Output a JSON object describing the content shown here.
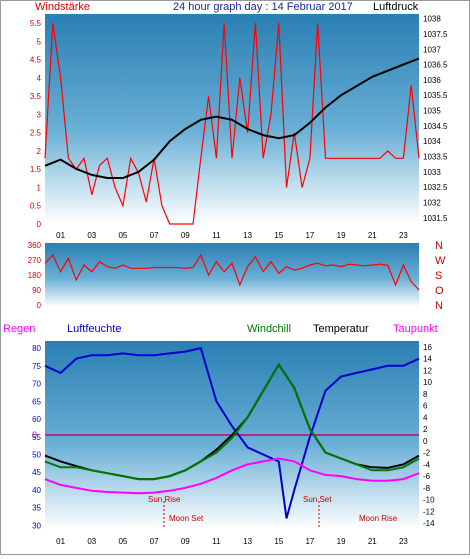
{
  "chart_data": [
    {
      "id": "wind-pressure",
      "type": "line",
      "title": "24 hour graph day : 14 Februar 2017",
      "left_label": "Windstärke",
      "right_label": "Luftdruck",
      "y_left": {
        "ticks": [
          "0",
          "0.5",
          "1",
          "1.5",
          "2",
          "2.5",
          "3",
          "3.5",
          "4",
          "4.5",
          "5",
          "5.5"
        ],
        "lim": [
          0,
          5.75
        ]
      },
      "y_right": {
        "ticks": [
          "1031.5",
          "1032",
          "1032.5",
          "1033",
          "1033.5",
          "1034",
          "1034.5",
          "1035",
          "1035.5",
          "1036",
          "1036.5",
          "1037",
          "1037.5",
          "1038"
        ],
        "lim": [
          1031.3,
          1038.15
        ]
      },
      "x_ticks": [
        "01",
        "03",
        "05",
        "07",
        "09",
        "11",
        "13",
        "15",
        "17",
        "19",
        "21",
        "23"
      ],
      "series": [
        {
          "name": "Windstärke",
          "color": "#ff0000",
          "axis": "left",
          "x": [
            0,
            0.5,
            1,
            1.5,
            2,
            2.5,
            3,
            3.5,
            4,
            4.5,
            5,
            5.5,
            6,
            6.5,
            7,
            7.5,
            8,
            8.5,
            9,
            9.5,
            10,
            10.5,
            11,
            11.5,
            12,
            12.5,
            13,
            13.5,
            14,
            14.5,
            15,
            15.5,
            16,
            16.5,
            17,
            17.5,
            18,
            18.5,
            19,
            19.5,
            20,
            20.5,
            21,
            21.5,
            22,
            22.5,
            23,
            23.5,
            24
          ],
          "y": [
            1.8,
            5.5,
            4.0,
            1.8,
            1.5,
            1.8,
            0.8,
            1.6,
            1.8,
            1.0,
            0.5,
            1.8,
            1.4,
            0.6,
            1.8,
            0.5,
            0,
            0,
            0,
            0,
            1.8,
            3.5,
            1.8,
            5.5,
            1.8,
            4.0,
            2.5,
            5.5,
            1.8,
            3.0,
            5.5,
            1.0,
            2.5,
            1.0,
            1.8,
            5.5,
            1.8,
            1.8,
            1.8,
            1.8,
            1.8,
            1.8,
            1.8,
            1.8,
            2.0,
            1.8,
            1.8,
            3.8,
            1.8
          ]
        },
        {
          "name": "Luftdruck",
          "color": "#000000",
          "axis": "right",
          "x": [
            0,
            1,
            2,
            3,
            4,
            5,
            6,
            7,
            8,
            9,
            10,
            11,
            12,
            13,
            14,
            15,
            16,
            17,
            18,
            19,
            20,
            21,
            22,
            23,
            24
          ],
          "y": [
            1033.2,
            1033.4,
            1033.1,
            1032.9,
            1032.8,
            1032.8,
            1033.0,
            1033.4,
            1034.0,
            1034.4,
            1034.7,
            1034.8,
            1034.7,
            1034.4,
            1034.2,
            1034.1,
            1034.2,
            1034.6,
            1035.1,
            1035.5,
            1035.8,
            1036.1,
            1036.3,
            1036.5,
            1036.7
          ]
        }
      ]
    },
    {
      "id": "wind-direction",
      "type": "line",
      "y_left": {
        "ticks": [
          "0",
          "90",
          "180",
          "270",
          "360"
        ],
        "lim": [
          0,
          360
        ]
      },
      "y_right_labels": [
        "N",
        "W",
        "S",
        "O",
        "N"
      ],
      "series": [
        {
          "name": "Windrichtung",
          "color": "#ff0000",
          "x": [
            0,
            0.5,
            1,
            1.5,
            2,
            2.5,
            3,
            3.5,
            4,
            4.5,
            5,
            5.5,
            6,
            6.5,
            7,
            7.5,
            8,
            8.5,
            9,
            9.5,
            10,
            10.5,
            11,
            11.5,
            12,
            12.5,
            13,
            13.5,
            14,
            14.5,
            15,
            15.5,
            16,
            16.5,
            17,
            17.5,
            18,
            18.5,
            19,
            19.5,
            20,
            20.5,
            21,
            21.5,
            22,
            22.5,
            23,
            23.5,
            24
          ],
          "y": [
            250,
            300,
            200,
            280,
            150,
            240,
            200,
            260,
            230,
            220,
            240,
            220,
            220,
            220,
            225,
            225,
            225,
            225,
            220,
            225,
            300,
            180,
            260,
            200,
            250,
            120,
            230,
            290,
            200,
            260,
            190,
            230,
            210,
            220,
            240,
            250,
            235,
            240,
            230,
            245,
            240,
            235,
            240,
            245,
            238,
            120,
            240,
            140,
            90
          ]
        }
      ]
    },
    {
      "id": "humidity-temperature",
      "type": "line",
      "legend": [
        "Regen",
        "Luftfeuchte",
        "Windchill",
        "Temperatur",
        "Taupunkt"
      ],
      "legend_colors": [
        "#ff00ff",
        "#0000cc",
        "#007700",
        "#000000",
        "#ff00ff"
      ],
      "y_left": {
        "ticks": [
          "30",
          "35",
          "40",
          "45",
          "50",
          "55",
          "60",
          "65",
          "70",
          "75",
          "80"
        ],
        "lim": [
          29,
          82
        ]
      },
      "y_right": {
        "ticks": [
          "-14",
          "-12",
          "-10",
          "-8",
          "-6",
          "-4",
          "-2",
          "0",
          "2",
          "4",
          "6",
          "8",
          "10",
          "12",
          "14",
          "16"
        ],
        "lim": [
          -15,
          17
        ]
      },
      "zero_label": "0",
      "annotations": [
        "Sun Rise",
        "Sun Set",
        "Moon Set",
        "Moon Rise"
      ],
      "series": [
        {
          "name": "Luftfeuchte",
          "color": "#0000cc",
          "axis": "left",
          "x": [
            0,
            1,
            2,
            3,
            4,
            5,
            6,
            7,
            8,
            9,
            10,
            11,
            12,
            13,
            14,
            15,
            15.5,
            16,
            17,
            18,
            19,
            20,
            21,
            22,
            23,
            24
          ],
          "y": [
            75,
            73,
            77,
            78,
            78,
            78.5,
            78,
            78,
            78.5,
            79,
            80,
            65,
            58,
            52,
            50,
            48,
            32,
            40,
            55,
            68,
            72,
            73,
            74,
            75,
            75,
            77
          ]
        },
        {
          "name": "Temperatur",
          "color": "#000000",
          "axis": "right",
          "x": [
            0,
            1,
            2,
            3,
            4,
            5,
            6,
            7,
            8,
            9,
            10,
            11,
            12,
            13,
            14,
            15,
            16,
            17,
            18,
            19,
            20,
            21,
            22,
            23,
            24
          ],
          "y": [
            -2.5,
            -3.5,
            -4.3,
            -5,
            -5.5,
            -6,
            -6.5,
            -6.5,
            -6,
            -5,
            -3.5,
            -1.5,
            1,
            4,
            8.5,
            13,
            9,
            2,
            -2,
            -3,
            -4,
            -4.5,
            -4.6,
            -4,
            -2.5
          ]
        },
        {
          "name": "Windchill",
          "color": "#007700",
          "axis": "right",
          "x": [
            0,
            1,
            2,
            3,
            4,
            5,
            6,
            7,
            8,
            9,
            10,
            11,
            12,
            13,
            14,
            15,
            16,
            17,
            18,
            19,
            20,
            21,
            22,
            23,
            24
          ],
          "y": [
            -3.5,
            -4.5,
            -4.5,
            -5,
            -5.5,
            -6,
            -6.5,
            -6.5,
            -6,
            -5,
            -3.5,
            -2,
            0.5,
            4,
            8.5,
            13,
            9,
            2,
            -2,
            -3,
            -4,
            -5,
            -5,
            -4.5,
            -3
          ]
        },
        {
          "name": "Taupunkt",
          "color": "#ff00ff",
          "axis": "right",
          "x": [
            0,
            1,
            2,
            3,
            4,
            5,
            6,
            7,
            8,
            9,
            10,
            11,
            12,
            13,
            14,
            15,
            16,
            17,
            18,
            19,
            20,
            21,
            22,
            23,
            24
          ],
          "y": [
            -6.5,
            -7.5,
            -8,
            -8.5,
            -8.7,
            -8.8,
            -8.9,
            -8.8,
            -8.5,
            -8,
            -7.3,
            -6.3,
            -5,
            -4,
            -3.5,
            -3,
            -3.5,
            -5,
            -5.8,
            -6,
            -6.5,
            -6.8,
            -6.8,
            -6.5,
            -5.5
          ]
        }
      ]
    }
  ]
}
